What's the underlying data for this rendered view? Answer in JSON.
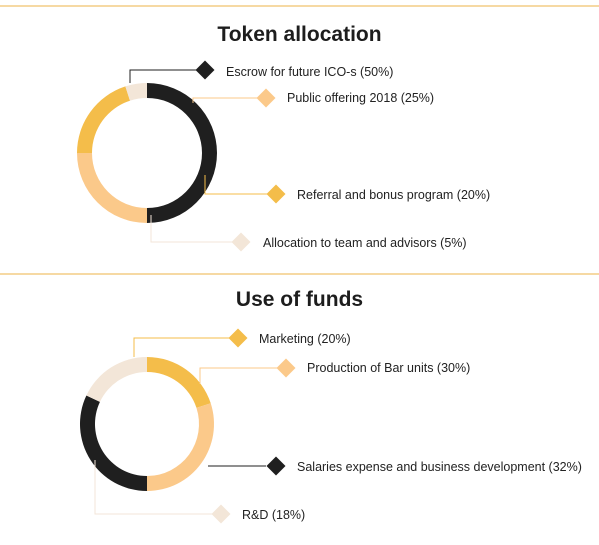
{
  "charts": {
    "allocation_title": "Token allocation",
    "funds_title": "Use of funds"
  },
  "chart_data": [
    {
      "type": "pie",
      "style": "donut",
      "title": "Token allocation",
      "slices": [
        {
          "label": "Escrow for future ICO-s (50%)",
          "value": 50,
          "color": "#1f1f1f"
        },
        {
          "label": "Public offering 2018 (25%)",
          "value": 25,
          "color": "#fbc98a"
        },
        {
          "label": "Referral and bonus program (20%)",
          "value": 20,
          "color": "#f4bd4a"
        },
        {
          "label": "Allocation to team and advisors (5%)",
          "value": 5,
          "color": "#f3e6d8"
        }
      ]
    },
    {
      "type": "pie",
      "style": "donut",
      "title": "Use of funds",
      "slices": [
        {
          "label": "Marketing (20%)",
          "value": 20,
          "color": "#f4bd4a"
        },
        {
          "label": "Production of Bar units (30%)",
          "value": 30,
          "color": "#fbc98a"
        },
        {
          "label": "Salaries expense and business development (32%)",
          "value": 32,
          "color": "#1f1f1f"
        },
        {
          "label": "R&D (18%)",
          "value": 18,
          "color": "#f3e6d8"
        }
      ]
    }
  ]
}
